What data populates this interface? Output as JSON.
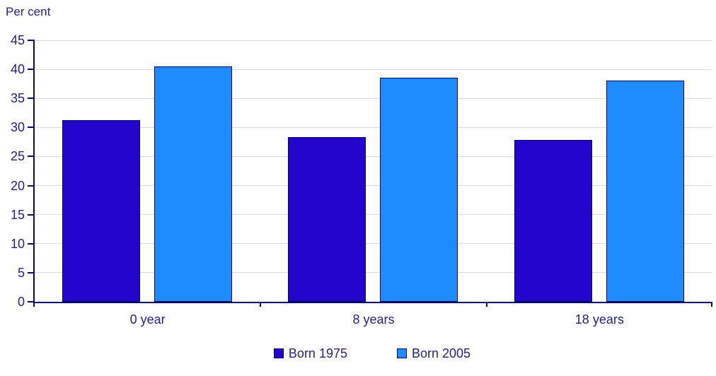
{
  "chart_data": {
    "type": "bar",
    "title": "",
    "ylabel": "Per cent",
    "xlabel": "",
    "categories": [
      "0 year",
      "8 years",
      "18 years"
    ],
    "series": [
      {
        "name": "Born 1975",
        "color": "#2305CB",
        "values": [
          31.2,
          28.3,
          27.9
        ]
      },
      {
        "name": "Born 2005",
        "color": "#1E8CFF",
        "values": [
          40.5,
          38.6,
          38.1
        ]
      }
    ],
    "ylim": [
      0,
      45
    ],
    "yticks": [
      0,
      5,
      10,
      15,
      20,
      25,
      30,
      35,
      40,
      45
    ],
    "grid": true,
    "legend_position": "bottom",
    "bar_border_color": "#000066",
    "axis_color": "#0A0A64",
    "gridline_color": "#D9D9EC",
    "text_color": "#23237D"
  }
}
